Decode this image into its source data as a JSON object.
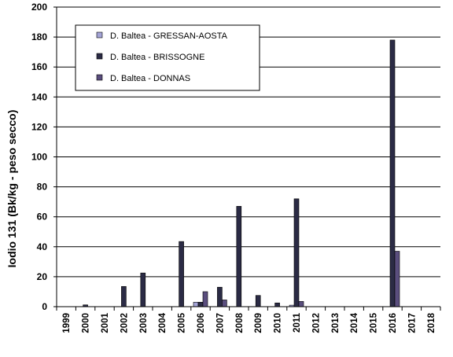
{
  "chart_data": {
    "type": "bar",
    "title": "",
    "xlabel": "",
    "ylabel": "Iodio 131  (Bk/kg - peso secco)",
    "ylim": [
      0,
      200
    ],
    "yticks": [
      0,
      20,
      40,
      60,
      80,
      100,
      120,
      140,
      160,
      180,
      200
    ],
    "grid": true,
    "legend_position": "top-left",
    "categories": [
      "1999",
      "2000",
      "2001",
      "2002",
      "2003",
      "2004",
      "2005",
      "2006",
      "2007",
      "2008",
      "2009",
      "2010",
      "2011",
      "2012",
      "2013",
      "2014",
      "2015",
      "2016",
      "2017",
      "2018"
    ],
    "series": [
      {
        "name": "D. Baltea - GRESSAN-AOSTA",
        "color": "#a4a4d6",
        "values": [
          null,
          null,
          null,
          null,
          null,
          null,
          null,
          3,
          null,
          null,
          null,
          null,
          1,
          null,
          null,
          null,
          null,
          null,
          null,
          null
        ]
      },
      {
        "name": "D. Baltea - BRISSOGNE",
        "color": "#2b2b45",
        "values": [
          null,
          1.2,
          null,
          13.5,
          22.5,
          null,
          43.5,
          3,
          13,
          67,
          7.5,
          2.5,
          72,
          null,
          null,
          null,
          null,
          178,
          null,
          null
        ]
      },
      {
        "name": "D. Baltea - DONNAS",
        "color": "#5a4e7e",
        "values": [
          null,
          null,
          null,
          null,
          null,
          null,
          null,
          10,
          4.5,
          null,
          null,
          null,
          3.5,
          null,
          null,
          null,
          null,
          37,
          null,
          null
        ]
      }
    ]
  }
}
